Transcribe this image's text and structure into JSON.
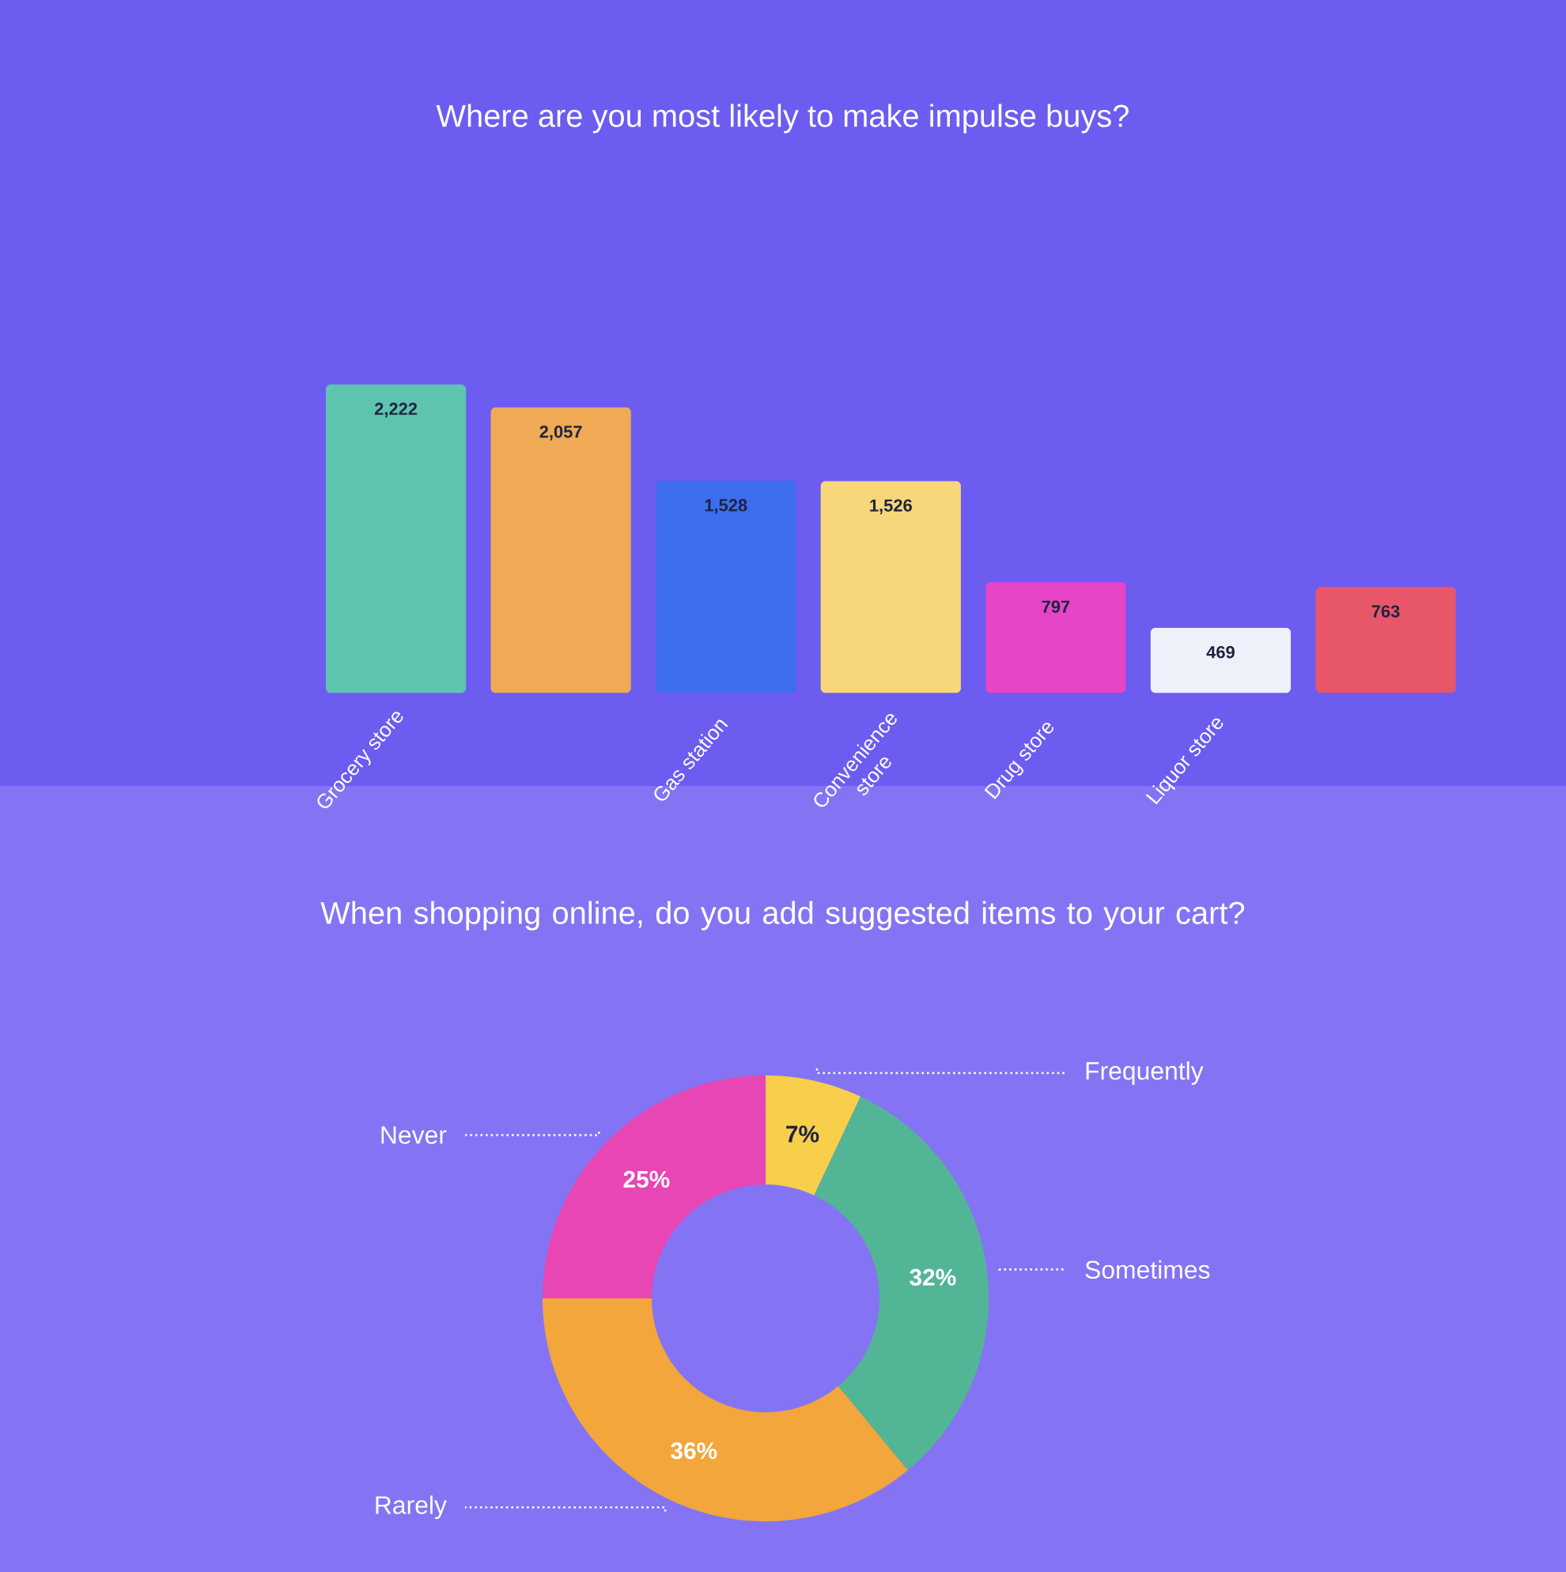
{
  "chart_data": [
    {
      "type": "bar",
      "title": "Where are you most likely to make impulse buys?",
      "categories": [
        "Grocery store",
        null,
        "Gas station",
        "Convenience store",
        "Drug store",
        "Liquor store",
        null
      ],
      "values": [
        2222,
        2057,
        1528,
        1526,
        797,
        469,
        763
      ],
      "colors": [
        "#5ec4b0",
        "#f0aa55",
        "#3d6ef0",
        "#f7d77a",
        "#e645c8",
        "#eef0fa",
        "#e8566a"
      ],
      "value_labels": [
        "2,222",
        "2,057",
        "1,528",
        "1,526",
        "797",
        "469",
        "763"
      ]
    },
    {
      "type": "donut",
      "title": "When shopping online, do you add suggested items to your cart?",
      "categories": [
        "Frequently",
        "Sometimes",
        "Rarely",
        "Never"
      ],
      "values": [
        7,
        32,
        36,
        25
      ],
      "colors": [
        "#f7cf4a",
        "#52b596",
        "#f2a63c",
        "#e845b5"
      ],
      "value_labels": [
        "7%",
        "32%",
        "36%",
        "25%"
      ]
    }
  ]
}
